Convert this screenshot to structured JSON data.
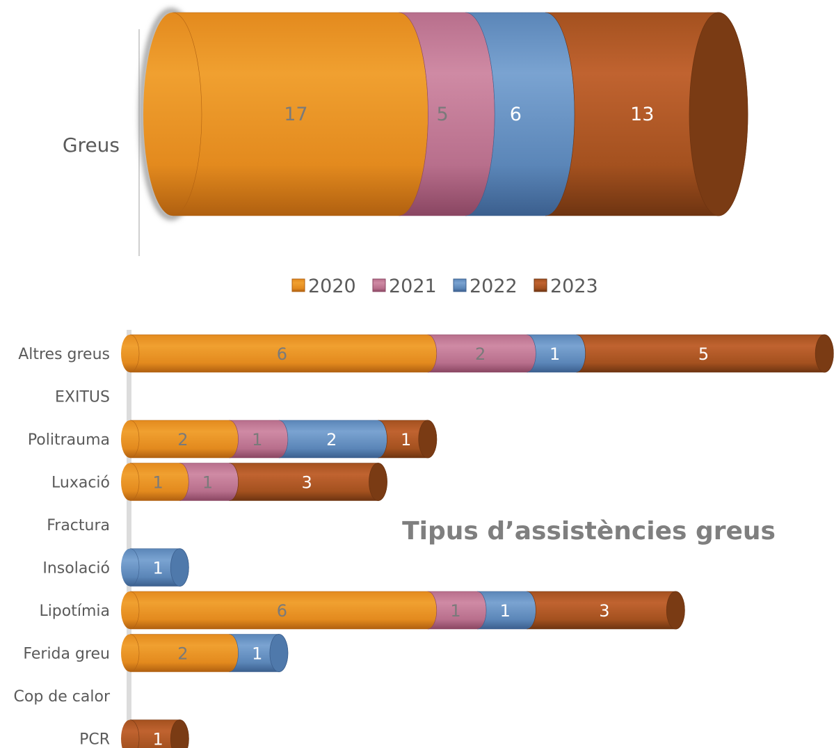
{
  "series_colors": {
    "2020": {
      "light": "#f0a030",
      "mid": "#e38a1e",
      "dark": "#b06010",
      "cap": "#d67d1a"
    },
    "2021": {
      "light": "#cf8aa4",
      "mid": "#b86f8c",
      "dark": "#8a4662",
      "cap": "#a85c7a"
    },
    "2022": {
      "light": "#7aa3d1",
      "mid": "#5b86b8",
      "dark": "#3b5f8e",
      "cap": "#4f79ab"
    },
    "2023": {
      "light": "#c06330",
      "mid": "#a4511f",
      "dark": "#6e3411",
      "cap": "#7a3b14"
    }
  },
  "chart_data": [
    {
      "type": "bar",
      "orientation": "horizontal",
      "stacked": true,
      "categories": [
        "Greus"
      ],
      "series": [
        {
          "name": "2020",
          "values": [
            17
          ]
        },
        {
          "name": "2021",
          "values": [
            5
          ]
        },
        {
          "name": "2022",
          "values": [
            6
          ]
        },
        {
          "name": "2023",
          "values": [
            13
          ]
        }
      ],
      "legend": {
        "position": "bottom",
        "entries": [
          "2020",
          "2021",
          "2022",
          "2023"
        ]
      }
    },
    {
      "type": "bar",
      "orientation": "horizontal",
      "stacked": true,
      "title": "Tipus d’assistències greus",
      "categories": [
        "Altres greus",
        "EXITUS",
        "Politrauma",
        "Luxació",
        "Fractura",
        "Insolació",
        "Lipotímia",
        "Ferida greu",
        "Cop de calor",
        "PCR"
      ],
      "series": [
        {
          "name": "2020",
          "values": [
            6,
            0,
            2,
            1,
            0,
            0,
            6,
            2,
            0,
            0
          ]
        },
        {
          "name": "2021",
          "values": [
            2,
            0,
            1,
            1,
            0,
            0,
            1,
            0,
            0,
            0
          ]
        },
        {
          "name": "2022",
          "values": [
            1,
            0,
            2,
            0,
            0,
            1,
            1,
            1,
            0,
            0
          ]
        },
        {
          "name": "2023",
          "values": [
            5,
            0,
            1,
            3,
            0,
            0,
            3,
            0,
            0,
            1
          ]
        }
      ]
    }
  ]
}
